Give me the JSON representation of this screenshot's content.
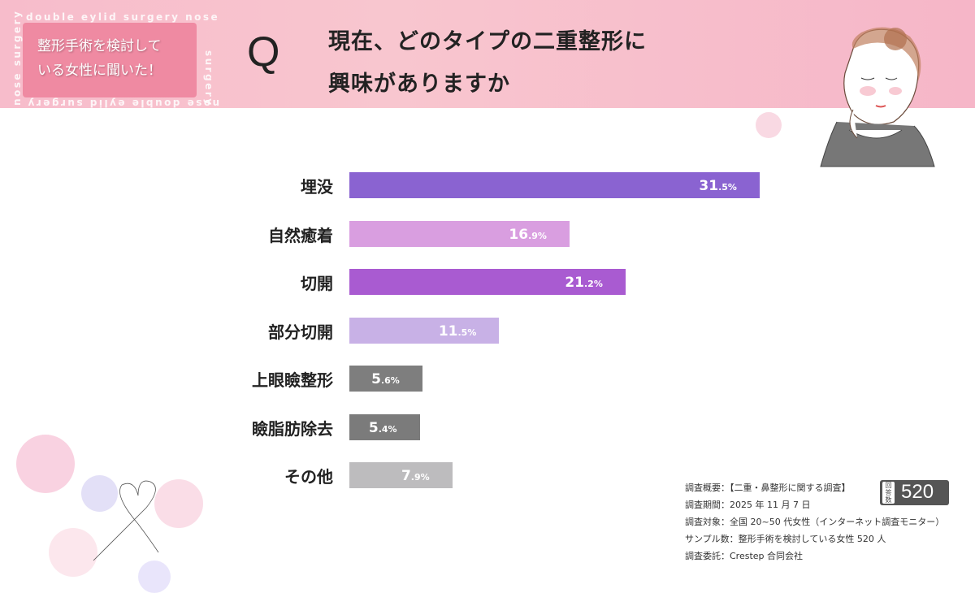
{
  "header": {
    "badge_text_line1": "整形手術を検討して",
    "badge_text_line2": "いる女性に聞いた！",
    "ring_text_top": "double eylid surgery   nose",
    "ring_text_right": "surgery",
    "ring_text_bottom": "nose   double eylid surgery",
    "ring_text_left": "nose surgery",
    "q_mark": "Q",
    "question_line1": "現在、どのタイプの二重整形に",
    "question_line2": "興味がありますか"
  },
  "chart_data": {
    "type": "bar",
    "orientation": "horizontal",
    "categories": [
      "埋没",
      "自然癒着",
      "切開",
      "部分切開",
      "上眼瞼整形",
      "瞼脂肪除去",
      "その他"
    ],
    "values": [
      31.5,
      16.9,
      21.2,
      11.5,
      5.6,
      5.4,
      7.9
    ],
    "unit": "%",
    "colors": [
      "#8a63d1",
      "#d99ee0",
      "#a95bd1",
      "#c8b1e6",
      "#7e7e7e",
      "#7b7b7b",
      "#bdbcbe"
    ],
    "grid": false,
    "legend": "none"
  },
  "notes": {
    "lines": [
      "調査概要：【二重・鼻整形に関する調査】",
      "調査期間：2025 年 11 月 7 日",
      "調査対象：全国 20~50 代女性（インターネット調査モニター）",
      "サンプル数：整形手術を検討している女性 520 人",
      "調査委託：Crestep 合同会社"
    ],
    "respondents_label": "回答数",
    "respondents": "520"
  }
}
